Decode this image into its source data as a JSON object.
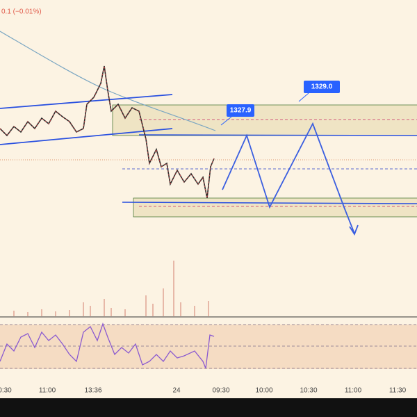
{
  "header": {
    "change": "0.1 (−0.01%)"
  },
  "callouts": [
    "1327.9",
    "1329.0"
  ],
  "time_axis": [
    "0:30",
    "11:00",
    "13:36",
    "24",
    "09:30",
    "10:00",
    "10:30",
    "11:00",
    "11:30"
  ]
}
